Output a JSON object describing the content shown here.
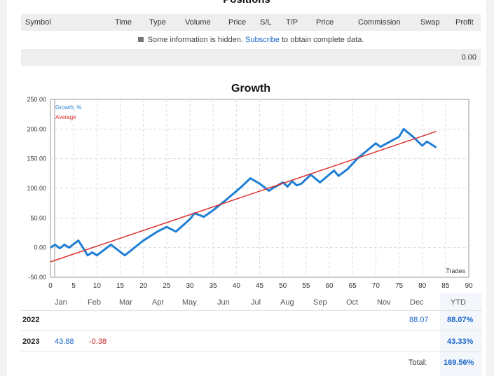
{
  "positions": {
    "title": "Positions",
    "columns": [
      "Symbol",
      "Time",
      "Type",
      "Volume",
      "Price",
      "S/L",
      "T/P",
      "Price",
      "Commission",
      "Swap",
      "Profit"
    ],
    "info_before": "Some information is hidden.",
    "info_link": "Subscribe",
    "info_after": "to obtain complete data.",
    "total_profit": "0.00"
  },
  "chart_data": {
    "type": "line",
    "title": "Growth",
    "xlabel": "Trades",
    "ylabel": "",
    "xlim": [
      0,
      90
    ],
    "ylim": [
      -50,
      250
    ],
    "x_ticks": [
      0,
      5,
      10,
      15,
      20,
      25,
      30,
      35,
      40,
      45,
      50,
      55,
      60,
      65,
      70,
      75,
      80,
      85,
      90
    ],
    "y_ticks": [
      "-50.00",
      "0.00",
      "50.00",
      "100.00",
      "150.00",
      "200.00",
      "250.00"
    ],
    "x_month_labels": [
      "Jan",
      "Feb",
      "Mar",
      "Apr",
      "May",
      "Jun",
      "Jul",
      "Aug",
      "Sep",
      "Oct",
      "Nov",
      "Dec"
    ],
    "legend": [
      "Growth, %",
      "Average"
    ],
    "legend_position": "top-left",
    "grid": true,
    "colors": {
      "growth": "#1f7fd6",
      "average": "#d9302c",
      "grid": "#dddddd",
      "axis": "#999999"
    },
    "series": [
      {
        "name": "Growth, %",
        "x": [
          0,
          1,
          2,
          3,
          4,
          5,
          6,
          7,
          8,
          9,
          10,
          13,
          16,
          20,
          23,
          25,
          27,
          30,
          31,
          33,
          35,
          38,
          41,
          43,
          45,
          47,
          48,
          50,
          51,
          52,
          53,
          54,
          56,
          58,
          61,
          62,
          64,
          66,
          70,
          71,
          75,
          76,
          78,
          80,
          81,
          83
        ],
        "y": [
          0,
          5,
          -1,
          5,
          0,
          6,
          12,
          0,
          -13,
          -8,
          -13,
          5,
          -13,
          12,
          27,
          35,
          27,
          48,
          58,
          52,
          63,
          82,
          102,
          117,
          108,
          96,
          101,
          110,
          103,
          112,
          105,
          108,
          123,
          110,
          130,
          121,
          133,
          150,
          176,
          170,
          187,
          200,
          187,
          172,
          179,
          169
        ]
      },
      {
        "name": "Average",
        "x": [
          0,
          83
        ],
        "y": [
          -24,
          196
        ]
      }
    ]
  },
  "ytd": {
    "months": [
      "Jan",
      "Feb",
      "Mar",
      "Apr",
      "May",
      "Jun",
      "Jul",
      "Aug",
      "Sep",
      "Oct",
      "Nov",
      "Dec"
    ],
    "ytd_header": "YTD",
    "rows": [
      {
        "year": "2022",
        "values": [
          "",
          "",
          "",
          "",
          "",
          "",
          "",
          "",
          "",
          "",
          "",
          "88.07"
        ],
        "ytd": "88.07%"
      },
      {
        "year": "2023",
        "values": [
          "43.88",
          "-0.38",
          "",
          "",
          "",
          "",
          "",
          "",
          "",
          "",
          "",
          ""
        ],
        "ytd": "43.33%"
      }
    ],
    "total_label": "Total:",
    "total_value": "169.56%"
  }
}
